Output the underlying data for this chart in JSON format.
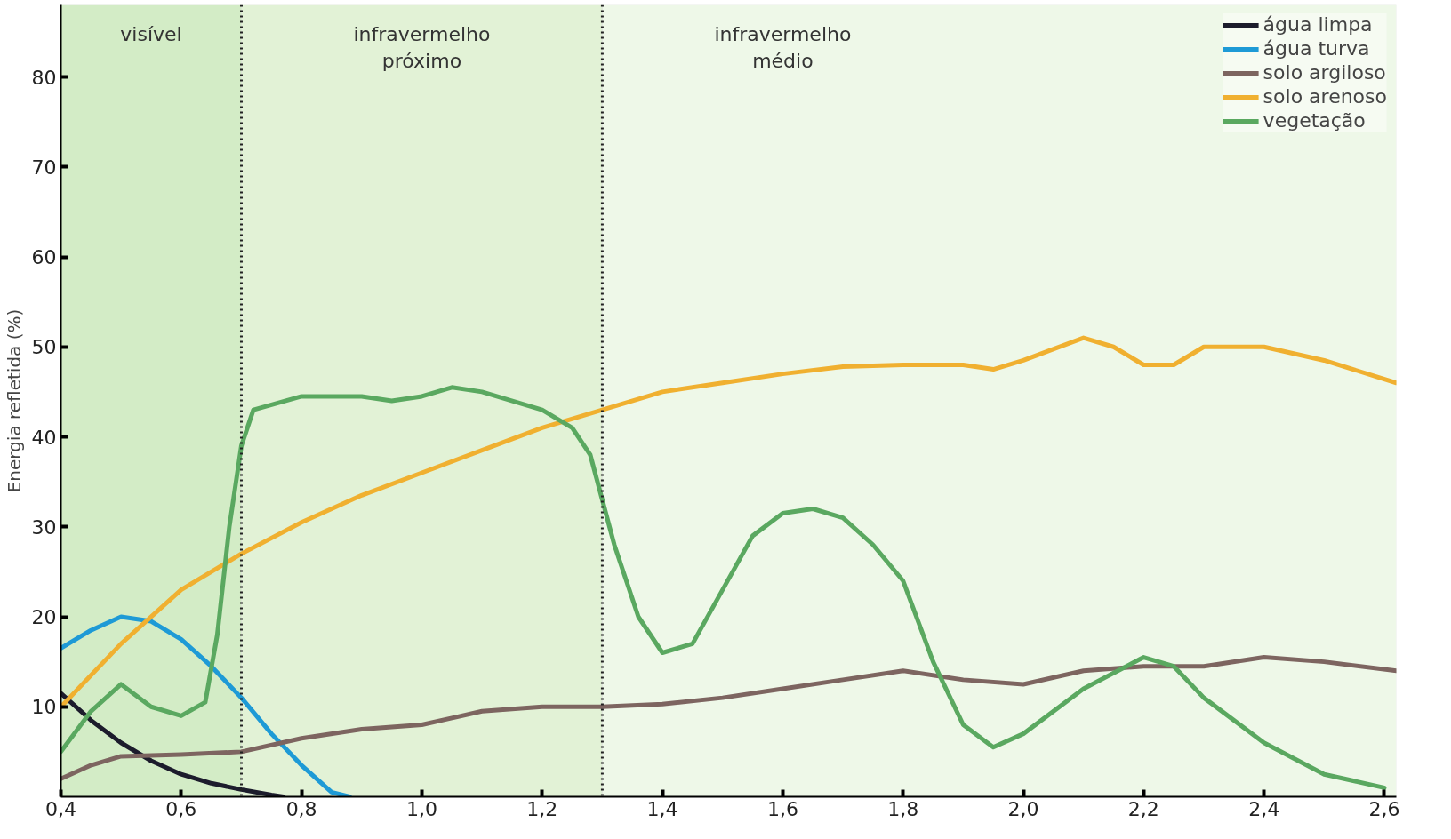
{
  "chart_data": {
    "type": "line",
    "ylabel": "Energia refletida (%)",
    "xlim": [
      0.4,
      2.62
    ],
    "ylim": [
      0,
      88
    ],
    "xticks": [
      {
        "value": 0.4,
        "label": "0,4"
      },
      {
        "value": 0.6,
        "label": "0,6"
      },
      {
        "value": 0.8,
        "label": "0,8"
      },
      {
        "value": 1.0,
        "label": "1,0"
      },
      {
        "value": 1.2,
        "label": "1,2"
      },
      {
        "value": 1.4,
        "label": "1,4"
      },
      {
        "value": 1.6,
        "label": "1,6"
      },
      {
        "value": 1.8,
        "label": "1,8"
      },
      {
        "value": 2.0,
        "label": "2,0"
      },
      {
        "value": 2.2,
        "label": "2,2"
      },
      {
        "value": 2.4,
        "label": "2,4"
      },
      {
        "value": 2.6,
        "label": "2,6"
      }
    ],
    "yticks": [
      10,
      20,
      30,
      40,
      50,
      60,
      70,
      80
    ],
    "legend": "top right",
    "line_style": "solid",
    "bands": [
      {
        "axis": "x",
        "from": 0.4,
        "to": 0.7,
        "label": "visível",
        "color": "#d3ecc6"
      },
      {
        "axis": "x",
        "from": 0.7,
        "to": 1.3,
        "label": "infravermelho\npróximo",
        "color": "#e2f2d6"
      },
      {
        "axis": "x",
        "from": 1.3,
        "to": 2.62,
        "label": "infravermelho\nmédio",
        "color": "#eef8e8"
      }
    ],
    "ref_lines": [
      {
        "axis": "x",
        "value": 0.7,
        "line_style": "dotted",
        "color": "#222222"
      },
      {
        "axis": "x",
        "value": 1.3,
        "line_style": "dotted",
        "color": "#222222"
      }
    ],
    "series": [
      {
        "name": "água limpa",
        "color": "#1c1c2c",
        "x": [
          0.4,
          0.45,
          0.5,
          0.55,
          0.6,
          0.65,
          0.7,
          0.75,
          0.77
        ],
        "values": [
          11.5,
          8.5,
          6,
          4,
          2.5,
          1.5,
          0.8,
          0.2,
          0
        ]
      },
      {
        "name": "água turva",
        "color": "#1e9ad6",
        "x": [
          0.4,
          0.45,
          0.5,
          0.55,
          0.6,
          0.65,
          0.7,
          0.75,
          0.8,
          0.85,
          0.88
        ],
        "values": [
          16.5,
          18.5,
          20,
          19.5,
          17.5,
          14.5,
          11,
          7,
          3.5,
          0.5,
          0
        ]
      },
      {
        "name": "solo argiloso",
        "color": "#7d6560",
        "x": [
          0.4,
          0.45,
          0.5,
          0.6,
          0.7,
          0.8,
          0.9,
          1.0,
          1.1,
          1.2,
          1.3,
          1.4,
          1.5,
          1.6,
          1.7,
          1.8,
          1.9,
          2.0,
          2.1,
          2.2,
          2.3,
          2.4,
          2.5,
          2.62
        ],
        "values": [
          2,
          3.5,
          4.5,
          4.7,
          5,
          6.5,
          7.5,
          8,
          9.5,
          10,
          10,
          10.3,
          11,
          12,
          13,
          14,
          13,
          12.5,
          14,
          14.5,
          14.5,
          15.5,
          15,
          14
        ]
      },
      {
        "name": "solo arenoso",
        "color": "#f0b030",
        "x": [
          0.4,
          0.5,
          0.6,
          0.7,
          0.8,
          0.9,
          1.0,
          1.1,
          1.2,
          1.3,
          1.4,
          1.5,
          1.6,
          1.7,
          1.8,
          1.9,
          1.95,
          2.0,
          2.1,
          2.15,
          2.2,
          2.25,
          2.3,
          2.4,
          2.5,
          2.62
        ],
        "values": [
          10,
          17,
          23,
          27,
          30.5,
          33.5,
          36,
          38.5,
          41,
          43,
          45,
          46,
          47,
          47.8,
          48,
          48,
          47.5,
          48.5,
          51,
          50,
          48,
          48,
          50,
          50,
          48.5,
          46
        ]
      },
      {
        "name": "vegetação",
        "color": "#5aa860",
        "x": [
          0.4,
          0.45,
          0.5,
          0.55,
          0.6,
          0.64,
          0.66,
          0.68,
          0.7,
          0.72,
          0.8,
          0.9,
          0.95,
          1.0,
          1.05,
          1.1,
          1.2,
          1.25,
          1.28,
          1.32,
          1.36,
          1.4,
          1.45,
          1.5,
          1.55,
          1.6,
          1.65,
          1.7,
          1.75,
          1.8,
          1.85,
          1.9,
          1.95,
          2.0,
          2.1,
          2.2,
          2.25,
          2.3,
          2.4,
          2.5,
          2.6
        ],
        "values": [
          5,
          9.5,
          12.5,
          10,
          9,
          10.5,
          18,
          30,
          39,
          43,
          44.5,
          44.5,
          44,
          44.5,
          45.5,
          45,
          43,
          41,
          38,
          28,
          20,
          16,
          17,
          23,
          29,
          31.5,
          32,
          31,
          28,
          24,
          15,
          8,
          5.5,
          7,
          12,
          15.5,
          14.5,
          11,
          6,
          2.5,
          1
        ]
      }
    ]
  }
}
